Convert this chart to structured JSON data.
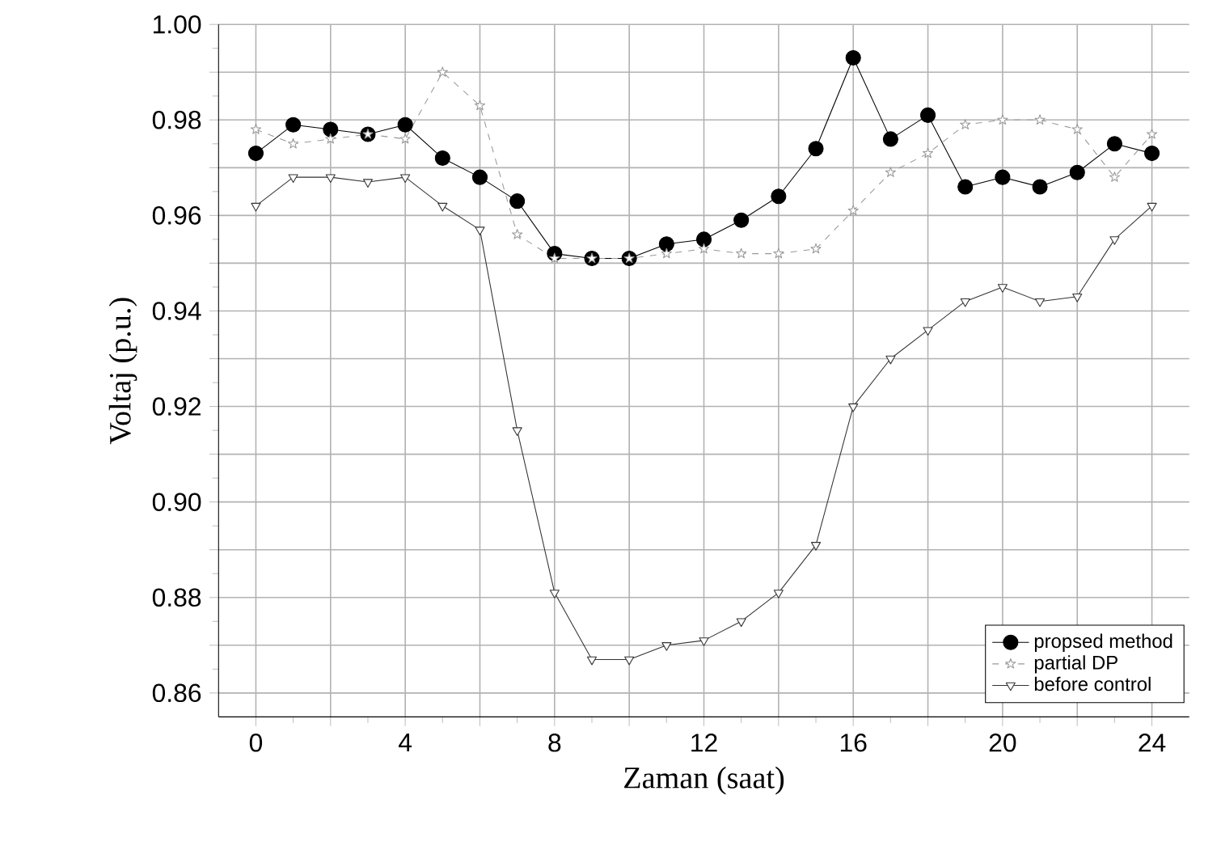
{
  "chart_data": {
    "type": "line",
    "xlabel": "Zaman (saat)",
    "ylabel": "Voltaj (p.u.)",
    "x": [
      0,
      1,
      2,
      3,
      4,
      5,
      6,
      7,
      8,
      9,
      10,
      11,
      12,
      13,
      14,
      15,
      16,
      17,
      18,
      19,
      20,
      21,
      22,
      23,
      24
    ],
    "series": [
      {
        "name": "propsed method",
        "color": "#000000",
        "marker": "circle",
        "line_style": "solid",
        "values": [
          0.973,
          0.979,
          0.978,
          0.977,
          0.979,
          0.972,
          0.968,
          0.963,
          0.952,
          0.951,
          0.951,
          0.954,
          0.955,
          0.959,
          0.964,
          0.974,
          0.993,
          0.976,
          0.981,
          0.966,
          0.968,
          0.966,
          0.969,
          0.975,
          0.973
        ]
      },
      {
        "name": "partial DP",
        "color": "#999999",
        "marker": "star",
        "line_style": "dashed",
        "values": [
          0.978,
          0.975,
          0.976,
          0.977,
          0.976,
          0.99,
          0.983,
          0.956,
          0.951,
          0.951,
          0.951,
          0.952,
          0.953,
          0.952,
          0.952,
          0.953,
          0.961,
          0.969,
          0.973,
          0.979,
          0.98,
          0.98,
          0.978,
          0.968,
          0.977
        ]
      },
      {
        "name": "before control",
        "color": "#333333",
        "marker": "triangle",
        "line_style": "solid",
        "values": [
          0.962,
          0.968,
          0.968,
          0.967,
          0.968,
          0.962,
          0.957,
          0.915,
          0.881,
          0.867,
          0.867,
          0.87,
          0.871,
          0.875,
          0.881,
          0.891,
          0.92,
          0.93,
          0.936,
          0.942,
          0.945,
          0.942,
          0.943,
          0.955,
          0.962
        ]
      }
    ],
    "xlim": [
      -1,
      25
    ],
    "ylim": [
      0.855,
      1.0
    ],
    "xticks": [
      0,
      {
        "value": 2,
        "label": null
      },
      4,
      {
        "value": 6,
        "label": null
      },
      8,
      {
        "value": 10,
        "label": null
      },
      12,
      {
        "value": 14,
        "label": null
      },
      16,
      {
        "value": 18,
        "label": null
      },
      20,
      {
        "value": 22,
        "label": null
      },
      24
    ],
    "yticks": [
      {
        "value": 0.86,
        "label": "0.86"
      },
      {
        "value": 0.87,
        "label": null
      },
      {
        "value": 0.88,
        "label": "0.88"
      },
      {
        "value": 0.89,
        "label": null
      },
      {
        "value": 0.9,
        "label": "0.90"
      },
      {
        "value": 0.91,
        "label": null
      },
      {
        "value": 0.92,
        "label": "0.92"
      },
      {
        "value": 0.93,
        "label": null
      },
      {
        "value": 0.94,
        "label": "0.94"
      },
      {
        "value": 0.95,
        "label": null
      },
      {
        "value": 0.96,
        "label": "0.96"
      },
      {
        "value": 0.97,
        "label": null
      },
      {
        "value": 0.98,
        "label": "0.98"
      },
      {
        "value": 0.99,
        "label": null
      },
      {
        "value": 1.0,
        "label": "1.00"
      }
    ],
    "grid": true,
    "legend": "bottom right"
  }
}
